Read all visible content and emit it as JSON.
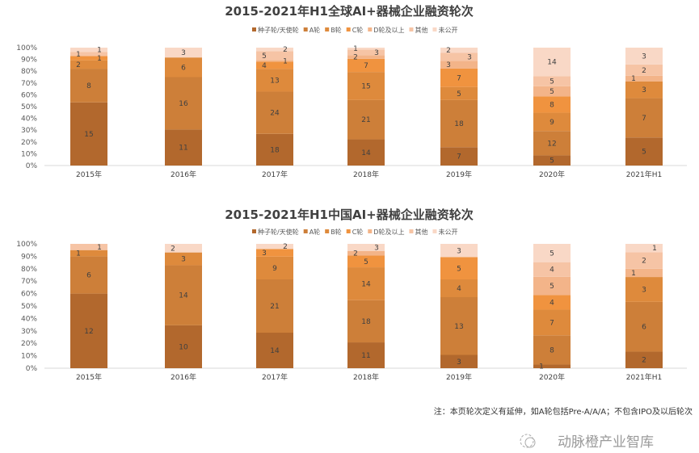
{
  "colors": [
    "#b2682d",
    "#cd7f39",
    "#de8a3c",
    "#f0933f",
    "#f3b489",
    "#f6c4a5",
    "#f9d8c6"
  ],
  "chart_data": [
    {
      "type": "bar",
      "stacked": "percent",
      "title": "2015-2021年H1全球AI+器械企业融资轮次",
      "categories": [
        "2015年",
        "2016年",
        "2017年",
        "2018年",
        "2019年",
        "2020年",
        "2021年H1"
      ],
      "ylim": [
        0,
        100
      ],
      "yticks": [
        "0%",
        "10%",
        "20%",
        "30%",
        "40%",
        "50%",
        "60%",
        "70%",
        "80%",
        "90%",
        "100%"
      ],
      "legend_position": "top",
      "series": [
        {
          "name": "种子轮/天使轮",
          "values": [
            15,
            11,
            18,
            14,
            7,
            5,
            5
          ]
        },
        {
          "name": "A轮",
          "values": [
            8,
            16,
            24,
            21,
            18,
            12,
            7
          ]
        },
        {
          "name": "B轮",
          "values": [
            2,
            6,
            13,
            15,
            5,
            9,
            3
          ]
        },
        {
          "name": "C轮",
          "values": [
            1,
            0,
            4,
            7,
            7,
            8,
            0
          ]
        },
        {
          "name": "D轮及以上",
          "values": [
            0,
            0,
            1,
            2,
            3,
            5,
            1
          ]
        },
        {
          "name": "其他",
          "values": [
            1,
            0,
            5,
            3,
            3,
            5,
            2
          ]
        },
        {
          "name": "未公开",
          "values": [
            1,
            3,
            2,
            1,
            2,
            14,
            3
          ]
        }
      ]
    },
    {
      "type": "bar",
      "stacked": "percent",
      "title": "2015-2021年H1中国AI+器械企业融资轮次",
      "categories": [
        "2015年",
        "2016年",
        "2017年",
        "2018年",
        "2019年",
        "2020年",
        "2021年H1"
      ],
      "ylim": [
        0,
        100
      ],
      "yticks": [
        "0%",
        "10%",
        "20%",
        "30%",
        "40%",
        "50%",
        "60%",
        "70%",
        "80%",
        "90%",
        "100%"
      ],
      "legend_position": "top",
      "series": [
        {
          "name": "种子轮/天使轮",
          "values": [
            12,
            10,
            14,
            11,
            3,
            1,
            2
          ]
        },
        {
          "name": "A轮",
          "values": [
            6,
            14,
            21,
            18,
            13,
            8,
            6
          ]
        },
        {
          "name": "B轮",
          "values": [
            1,
            3,
            9,
            14,
            4,
            7,
            3
          ]
        },
        {
          "name": "C轮",
          "values": [
            0,
            0,
            3,
            5,
            5,
            4,
            0
          ]
        },
        {
          "name": "D轮及以上",
          "values": [
            0,
            0,
            0,
            2,
            0,
            5,
            1
          ]
        },
        {
          "name": "其他",
          "values": [
            1,
            0,
            0,
            0,
            0,
            4,
            2
          ]
        },
        {
          "name": "未公开",
          "values": [
            0,
            2,
            2,
            3,
            3,
            5,
            1
          ]
        }
      ]
    }
  ],
  "footnote": "注：本页轮次定义有延伸，如A轮包括Pre-A/A/A；不包含IPO及以后轮次",
  "watermark": "动脉橙产业智库"
}
